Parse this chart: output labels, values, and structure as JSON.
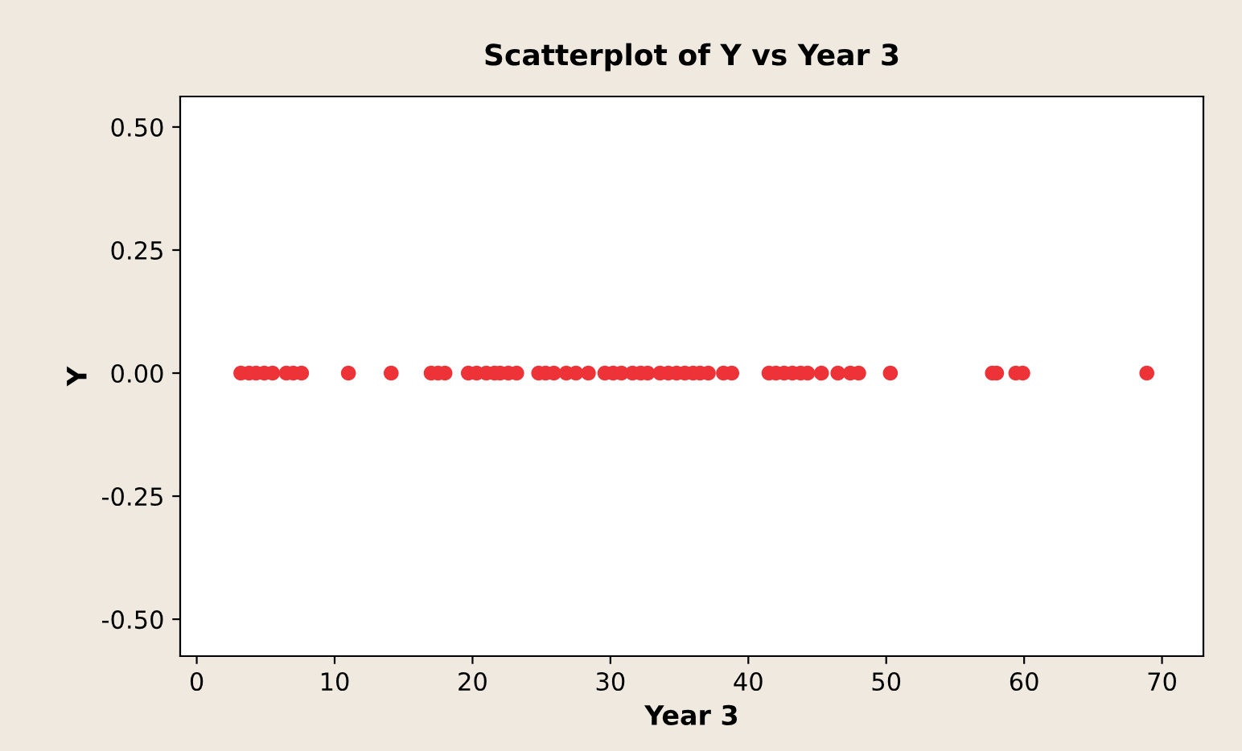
{
  "chart_data": {
    "type": "scatter",
    "title": "Scatterplot of Y vs Year 3",
    "xlabel": "Year 3",
    "ylabel": "Y",
    "x": [
      3.2,
      3.8,
      4.3,
      4.9,
      5.5,
      6.5,
      7.0,
      7.6,
      11.0,
      14.1,
      17.0,
      17.5,
      18.0,
      19.7,
      20.3,
      21.0,
      21.6,
      22.0,
      22.6,
      23.2,
      24.8,
      25.3,
      25.9,
      26.8,
      27.5,
      28.4,
      29.6,
      30.2,
      30.8,
      31.6,
      32.2,
      32.7,
      33.6,
      34.2,
      34.8,
      35.4,
      36.0,
      36.5,
      37.1,
      38.2,
      38.8,
      41.5,
      42.0,
      42.6,
      43.2,
      43.8,
      44.3,
      45.3,
      46.5,
      47.4,
      48.0,
      50.3,
      57.7,
      58.0,
      59.4,
      59.9,
      68.9
    ],
    "values": [
      0,
      0,
      0,
      0,
      0,
      0,
      0,
      0,
      0,
      0,
      0,
      0,
      0,
      0,
      0,
      0,
      0,
      0,
      0,
      0,
      0,
      0,
      0,
      0,
      0,
      0,
      0,
      0,
      0,
      0,
      0,
      0,
      0,
      0,
      0,
      0,
      0,
      0,
      0,
      0,
      0,
      0,
      0,
      0,
      0,
      0,
      0,
      0,
      0,
      0,
      0,
      0,
      0,
      0,
      0,
      0,
      0
    ],
    "color": "#ee3338",
    "marker": "circle",
    "xlim": [
      -1.2,
      73
    ],
    "xticks": [
      0,
      10,
      20,
      30,
      40,
      50,
      60,
      70
    ],
    "ylim": [
      -0.575,
      0.562
    ],
    "yticks": [
      {
        "value": -0.5,
        "label": "-0.50"
      },
      {
        "value": -0.25,
        "label": "-0.25"
      },
      {
        "value": 0,
        "label": "0.00"
      },
      {
        "value": 0.25,
        "label": "0.25"
      },
      {
        "value": 0.5,
        "label": "0.50"
      }
    ],
    "grid": false,
    "legend": false
  }
}
